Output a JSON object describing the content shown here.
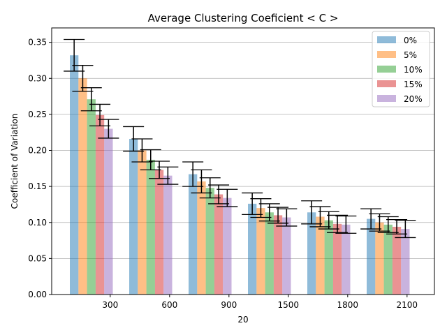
{
  "chart_data": {
    "type": "bar",
    "title": "Average Clustering Coeficient  < C >",
    "xlabel": "20",
    "ylabel": "Coefficient of Variation",
    "categories": [
      "300",
      "600",
      "900",
      "1500",
      "1800",
      "2100"
    ],
    "ylim": [
      0,
      0.37
    ],
    "yticks": [
      "0.00",
      "0.05",
      "0.10",
      "0.15",
      "0.20",
      "0.25",
      "0.30",
      "0.35"
    ],
    "grid": "horizontal",
    "legend_position": "top-right",
    "series": [
      {
        "name": "0%",
        "color": "#1f77b4",
        "values": [
          0.332,
          0.216,
          0.167,
          0.126,
          0.114,
          0.105
        ],
        "errors": [
          0.022,
          0.017,
          0.017,
          0.015,
          0.016,
          0.014
        ]
      },
      {
        "name": "5%",
        "color": "#ff7f0e",
        "values": [
          0.3,
          0.2,
          0.157,
          0.12,
          0.108,
          0.1
        ],
        "errors": [
          0.018,
          0.016,
          0.016,
          0.013,
          0.014,
          0.012
        ]
      },
      {
        "name": "10%",
        "color": "#2ca02c",
        "values": [
          0.271,
          0.187,
          0.148,
          0.114,
          0.103,
          0.097
        ],
        "errors": [
          0.016,
          0.014,
          0.014,
          0.012,
          0.012,
          0.011
        ]
      },
      {
        "name": "15%",
        "color": "#d62728",
        "values": [
          0.249,
          0.173,
          0.139,
          0.11,
          0.098,
          0.094
        ],
        "errors": [
          0.015,
          0.012,
          0.013,
          0.011,
          0.012,
          0.01
        ]
      },
      {
        "name": "20%",
        "color": "#9467bd",
        "values": [
          0.23,
          0.165,
          0.134,
          0.107,
          0.097,
          0.091
        ],
        "errors": [
          0.013,
          0.012,
          0.012,
          0.012,
          0.012,
          0.012
        ]
      }
    ]
  }
}
